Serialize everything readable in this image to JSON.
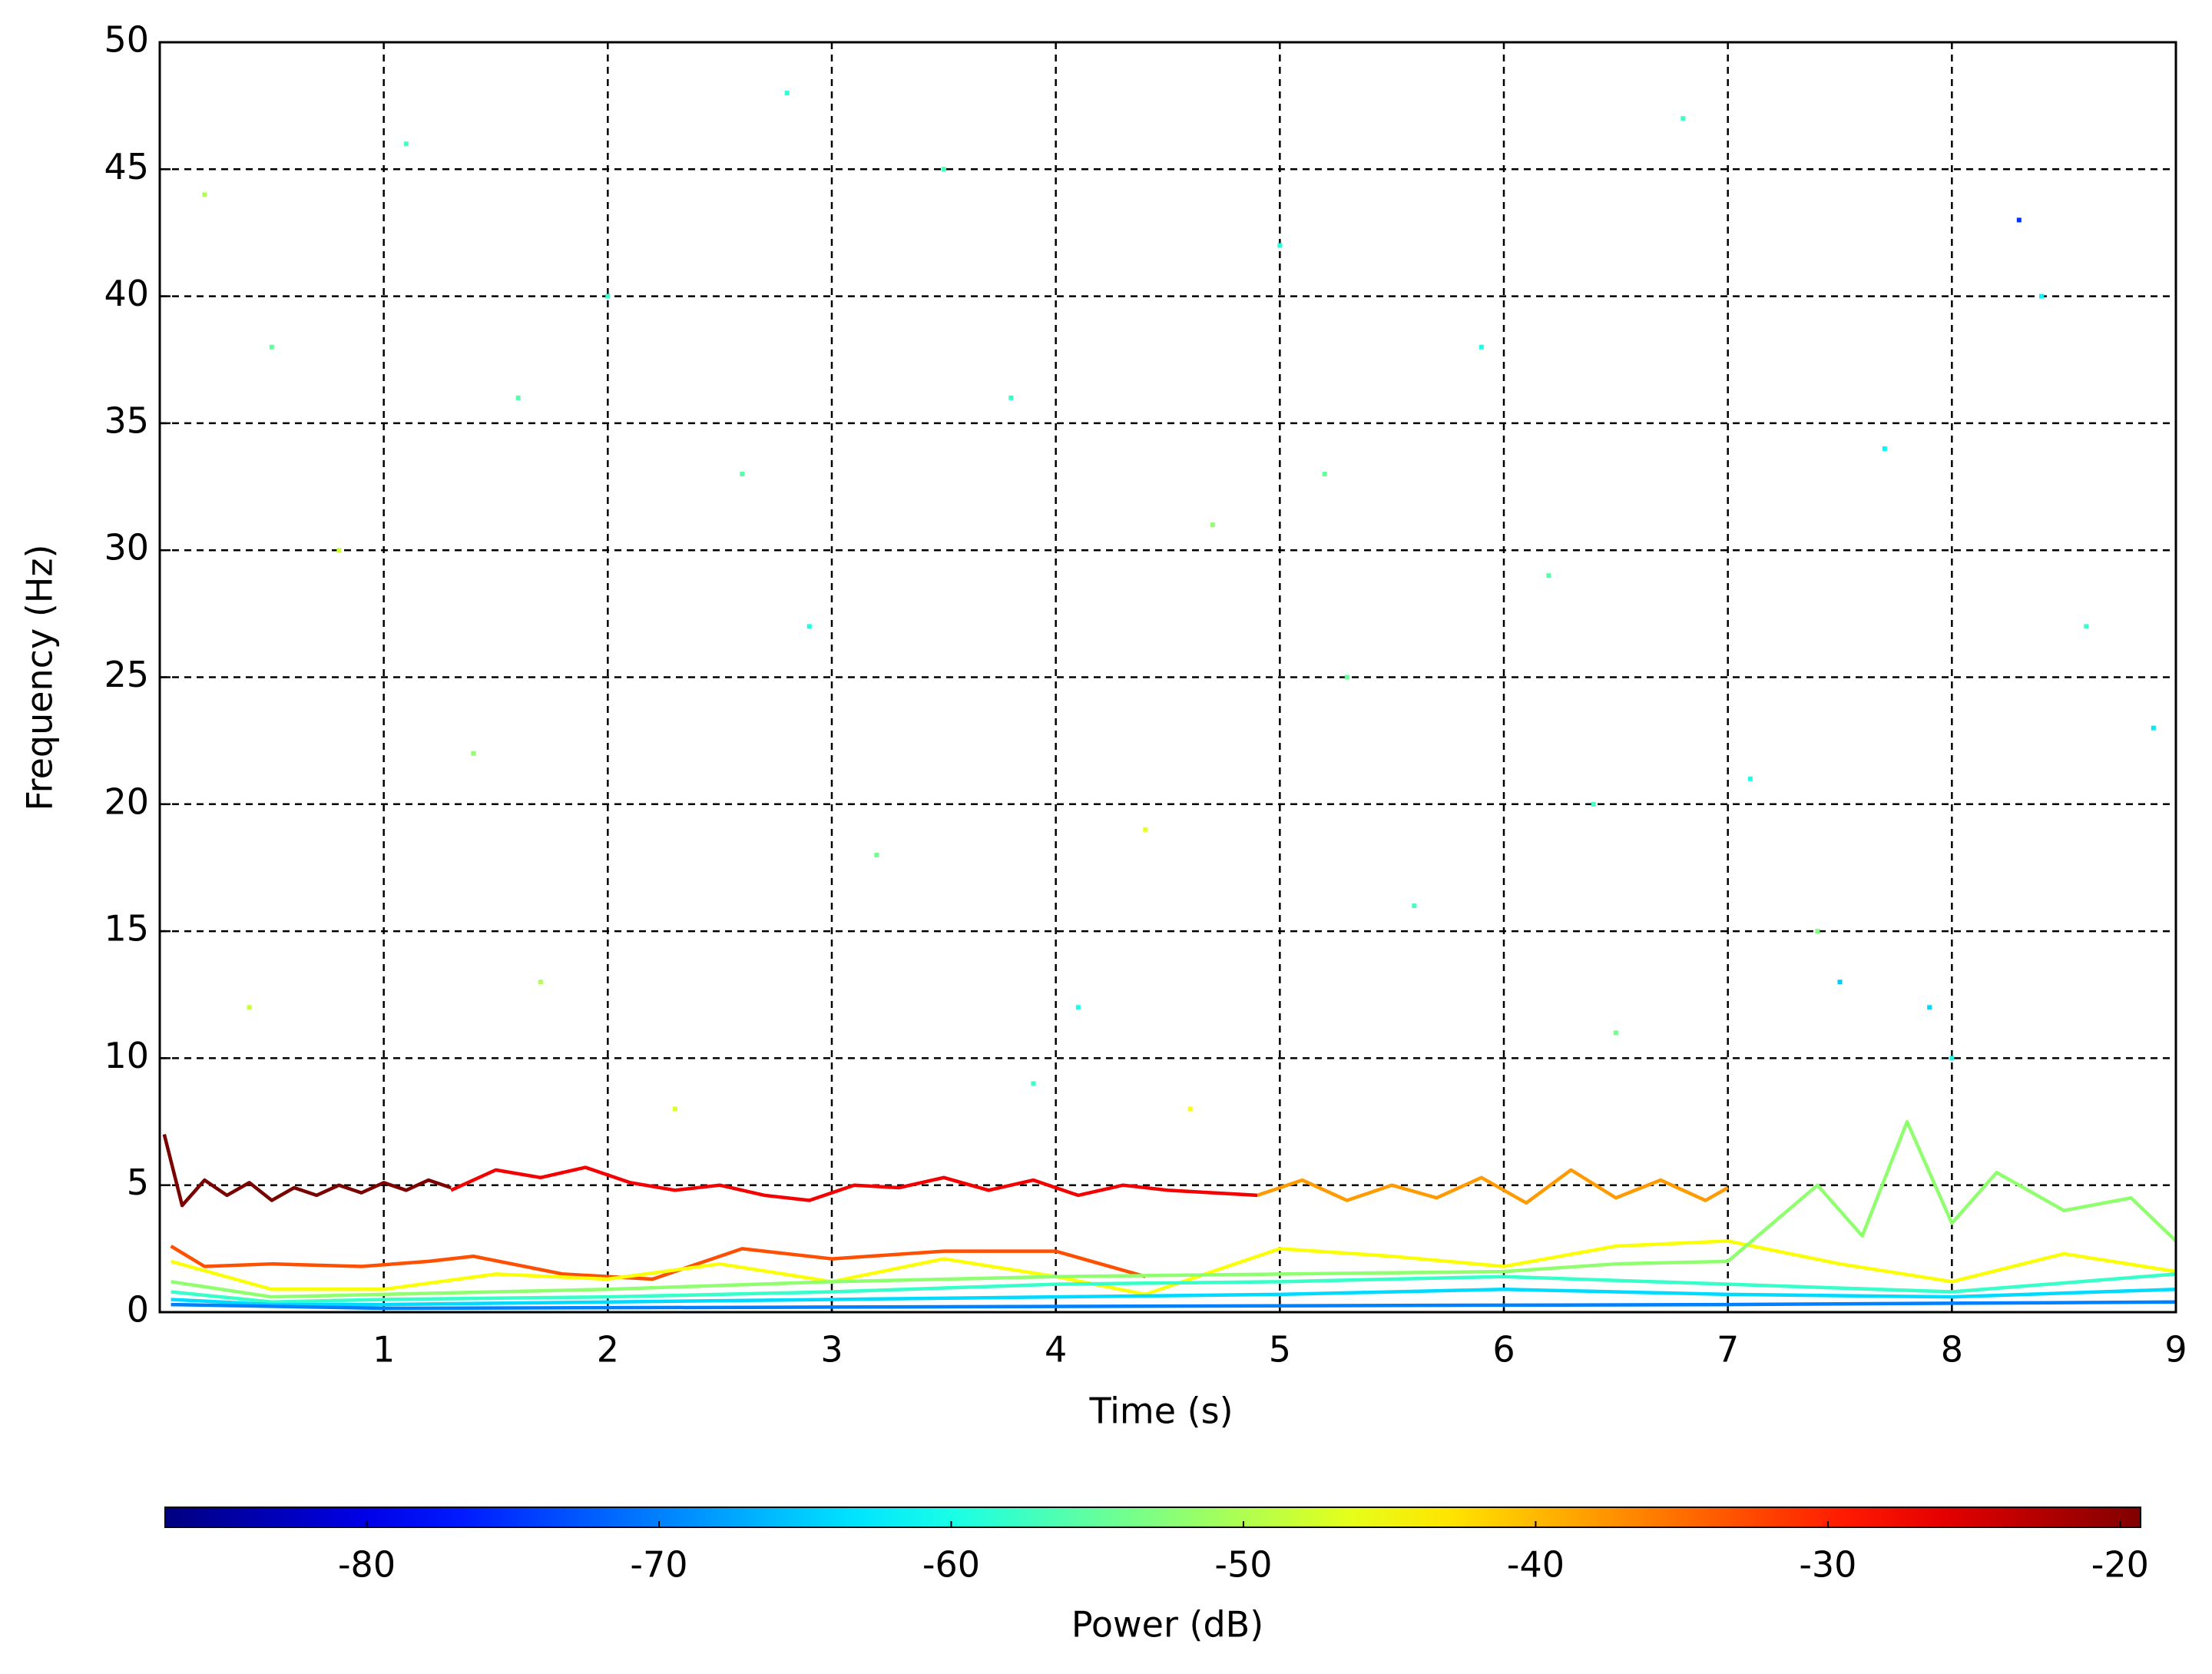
{
  "chart_data": {
    "type": "line",
    "xlabel": "Time (s)",
    "ylabel": "Frequency (Hz)",
    "xlim": [
      0,
      9
    ],
    "ylim": [
      0,
      50
    ],
    "xticks": [
      1,
      2,
      3,
      4,
      5,
      6,
      7,
      8,
      9
    ],
    "yticks": [
      0,
      5,
      10,
      15,
      20,
      25,
      30,
      35,
      40,
      45,
      50
    ],
    "grid": true,
    "colormap": "jet",
    "colorbar": {
      "label": "Power (dB)",
      "clim": [
        -86.9,
        -19.3
      ],
      "ticks": [
        -80,
        -70,
        -60,
        -50,
        -40,
        -30,
        -20
      ]
    },
    "series": [
      {
        "power": -19,
        "x": [
          0.02,
          0.1,
          0.2,
          0.3,
          0.4,
          0.5,
          0.6,
          0.7,
          0.8,
          0.9,
          1.0,
          1.1,
          1.2,
          1.3
        ],
        "values": [
          7,
          4.2,
          5.2,
          4.6,
          5.1,
          4.4,
          4.9,
          4.6,
          5.0,
          4.7,
          5.1,
          4.8,
          5.2,
          4.9
        ]
      },
      {
        "power": -27,
        "x": [
          1.3,
          1.5,
          1.7,
          1.9,
          2.1,
          2.3,
          2.5,
          2.7,
          2.9,
          3.1,
          3.3,
          3.5,
          3.7,
          3.9,
          4.1,
          4.3,
          4.5,
          4.7,
          4.9
        ],
        "values": [
          4.8,
          5.6,
          5.3,
          5.7,
          5.1,
          4.8,
          5.0,
          4.6,
          4.4,
          5.0,
          4.9,
          5.3,
          4.8,
          5.2,
          4.6,
          5.0,
          4.8,
          4.7,
          4.6
        ]
      },
      {
        "power": -38,
        "x": [
          4.9,
          5.1,
          5.3,
          5.5,
          5.7,
          5.9,
          6.1,
          6.3,
          6.5,
          6.7,
          6.9,
          7.0
        ],
        "values": [
          4.6,
          5.2,
          4.4,
          5.0,
          4.5,
          5.3,
          4.3,
          5.6,
          4.5,
          5.2,
          4.4,
          4.9
        ]
      },
      {
        "power": -33,
        "x": [
          0.05,
          0.2,
          0.5,
          0.9,
          1.2,
          1.4,
          1.8,
          2.2,
          2.6,
          3.0,
          3.5,
          4.0,
          4.4
        ],
        "values": [
          2.6,
          1.8,
          1.9,
          1.8,
          2.0,
          2.2,
          1.5,
          1.3,
          2.5,
          2.1,
          2.4,
          2.4,
          1.4
        ]
      },
      {
        "power": -45,
        "x": [
          0.05,
          0.5,
          1,
          1.5,
          2,
          2.5,
          3,
          3.5,
          4,
          4.4,
          5,
          5.5,
          6,
          6.5,
          7,
          7.5,
          8,
          8.5,
          9
        ],
        "values": [
          2.0,
          0.9,
          0.9,
          1.5,
          1.3,
          1.9,
          1.2,
          2.1,
          1.4,
          0.7,
          2.5,
          2.2,
          1.8,
          2.6,
          2.8,
          1.9,
          1.2,
          2.3,
          1.6
        ]
      },
      {
        "power": -52,
        "x": [
          0.05,
          0.5,
          1,
          2,
          3,
          4,
          5,
          6,
          6.5,
          7,
          7.4,
          7.6,
          7.8,
          8,
          8.2,
          8.5,
          8.8,
          9
        ],
        "values": [
          1.2,
          0.6,
          0.7,
          0.9,
          1.2,
          1.4,
          1.5,
          1.6,
          1.9,
          2.0,
          5.0,
          3.0,
          7.5,
          3.5,
          5.5,
          4.0,
          4.5,
          2.8
        ]
      },
      {
        "power": -58,
        "x": [
          0.05,
          0.5,
          1,
          2,
          3,
          4,
          5,
          6,
          7,
          8,
          9
        ],
        "values": [
          0.8,
          0.4,
          0.5,
          0.6,
          0.8,
          1.1,
          1.2,
          1.4,
          1.1,
          0.8,
          1.5
        ]
      },
      {
        "power": -64,
        "x": [
          0.05,
          0.5,
          1,
          2,
          3,
          4,
          5,
          6,
          7,
          8,
          9
        ],
        "values": [
          0.5,
          0.3,
          0.3,
          0.4,
          0.5,
          0.6,
          0.7,
          0.9,
          0.7,
          0.6,
          0.9
        ]
      },
      {
        "power": -70,
        "x": [
          0.05,
          1,
          3,
          5,
          7,
          9
        ],
        "values": [
          0.3,
          0.15,
          0.2,
          0.25,
          0.3,
          0.4
        ]
      }
    ],
    "points": {
      "x": [
        0.2,
        0.5,
        0.8,
        1.1,
        1.4,
        1.7,
        2.0,
        2.3,
        2.6,
        2.9,
        3.2,
        3.5,
        3.8,
        4.1,
        4.4,
        4.7,
        5.0,
        5.3,
        5.6,
        5.9,
        6.2,
        6.5,
        6.8,
        7.1,
        7.4,
        7.7,
        8.0,
        8.3,
        8.6,
        8.9,
        0.4,
        1.6,
        2.8,
        3.9,
        5.2,
        6.4,
        7.5,
        8.4,
        4.6,
        7.9
      ],
      "y": [
        44,
        38,
        30,
        46,
        22,
        13,
        40,
        8,
        33,
        27,
        18,
        45,
        36,
        12,
        19,
        31,
        42,
        25,
        16,
        38,
        29,
        11,
        47,
        21,
        15,
        34,
        10,
        43,
        27,
        23,
        12,
        36,
        48,
        9,
        33,
        20,
        13,
        40,
        8,
        12
      ],
      "power": [
        -50,
        -55,
        -48,
        -57,
        -52,
        -50,
        -58,
        -47,
        -56,
        -60,
        -54,
        -57,
        -58,
        -60,
        -46,
        -52,
        -59,
        -55,
        -57,
        -60,
        -56,
        -54,
        -58,
        -60,
        -53,
        -62,
        -60,
        -75,
        -58,
        -63,
        -48,
        -56,
        -59,
        -58,
        -55,
        -57,
        -65,
        -62,
        -45,
        -64
      ]
    }
  }
}
